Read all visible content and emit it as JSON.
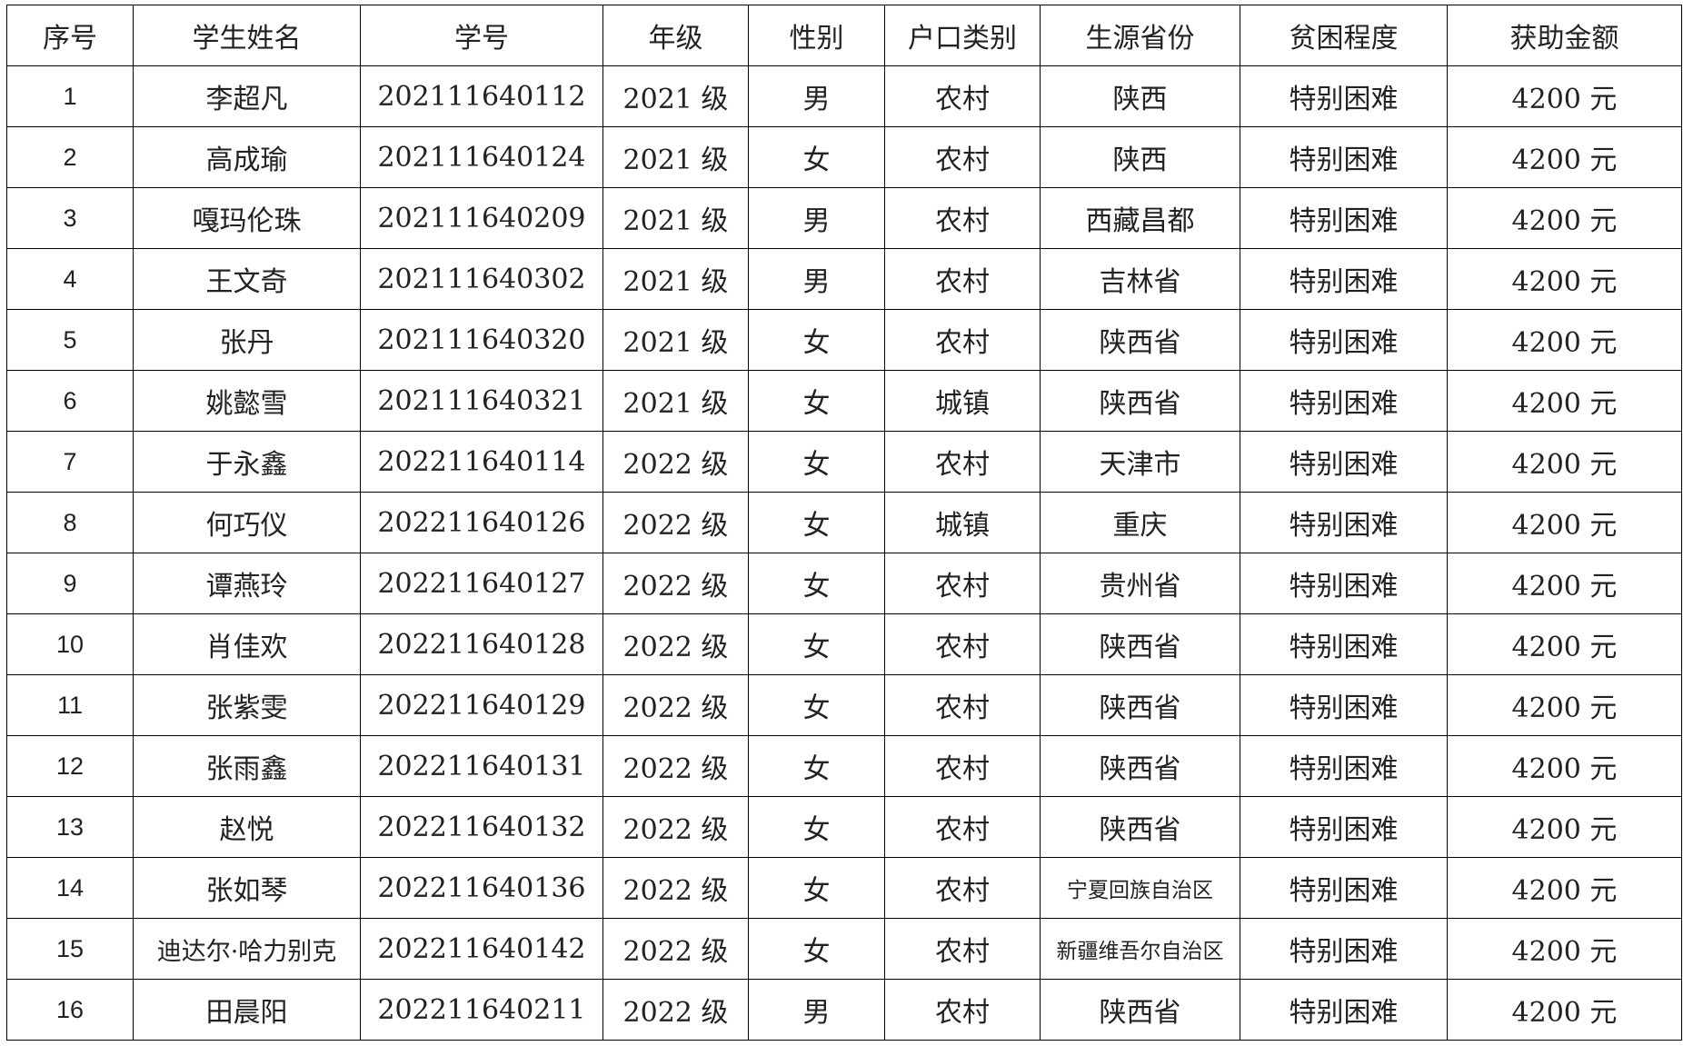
{
  "table": {
    "header": [
      "序号",
      "学生姓名",
      "学号",
      "年级",
      "性别",
      "户口类别",
      "生源省份",
      "贫困程度",
      "获助金额"
    ],
    "rows": [
      [
        "1",
        "李超凡",
        "202111640112",
        "2021 级",
        "男",
        "农村",
        "陕西",
        "特别困难",
        "4200 元"
      ],
      [
        "2",
        "高成瑜",
        "202111640124",
        "2021 级",
        "女",
        "农村",
        "陕西",
        "特别困难",
        "4200 元"
      ],
      [
        "3",
        "嘎玛伦珠",
        "202111640209",
        "2021 级",
        "男",
        "农村",
        "西藏昌都",
        "特别困难",
        "4200 元"
      ],
      [
        "4",
        "王文奇",
        "202111640302",
        "2021 级",
        "男",
        "农村",
        "吉林省",
        "特别困难",
        "4200 元"
      ],
      [
        "5",
        "张丹",
        "202111640320",
        "2021 级",
        "女",
        "农村",
        "陕西省",
        "特别困难",
        "4200 元"
      ],
      [
        "6",
        "姚懿雪",
        "202111640321",
        "2021 级",
        "女",
        "城镇",
        "陕西省",
        "特别困难",
        "4200 元"
      ],
      [
        "7",
        "于永鑫",
        "202211640114",
        "2022 级",
        "女",
        "农村",
        "天津市",
        "特别困难",
        "4200 元"
      ],
      [
        "8",
        "何巧仪",
        "202211640126",
        "2022 级",
        "女",
        "城镇",
        "重庆",
        "特别困难",
        "4200 元"
      ],
      [
        "9",
        "谭燕玲",
        "202211640127",
        "2022 级",
        "女",
        "农村",
        "贵州省",
        "特别困难",
        "4200 元"
      ],
      [
        "10",
        "肖佳欢",
        "202211640128",
        "2022 级",
        "女",
        "农村",
        "陕西省",
        "特别困难",
        "4200 元"
      ],
      [
        "11",
        "张紫雯",
        "202211640129",
        "2022 级",
        "女",
        "农村",
        "陕西省",
        "特别困难",
        "4200 元"
      ],
      [
        "12",
        "张雨鑫",
        "202211640131",
        "2022 级",
        "女",
        "农村",
        "陕西省",
        "特别困难",
        "4200 元"
      ],
      [
        "13",
        "赵悦",
        "202211640132",
        "2022 级",
        "女",
        "农村",
        "陕西省",
        "特别困难",
        "4200 元"
      ],
      [
        "14",
        "张如琴",
        "202211640136",
        "2022 级",
        "女",
        "农村",
        "宁夏回族自治区",
        "特别困难",
        "4200 元"
      ],
      [
        "15",
        "迪达尔·哈力别克",
        "202211640142",
        "2022 级",
        "女",
        "农村",
        "新疆维吾尔自治区",
        "特别困难",
        "4200 元"
      ],
      [
        "16",
        "田晨阳",
        "202211640211",
        "2022 级",
        "男",
        "农村",
        "陕西省",
        "特别困难",
        "4200 元"
      ]
    ]
  }
}
